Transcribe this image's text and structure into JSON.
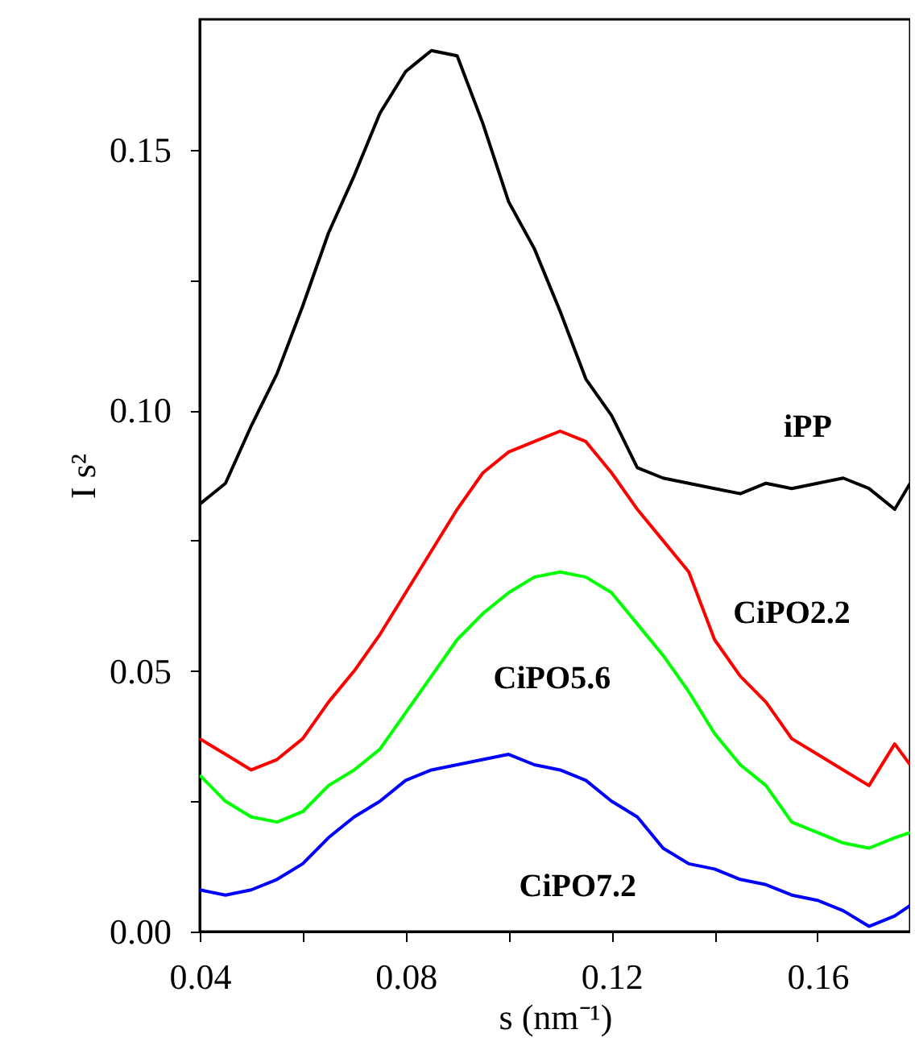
{
  "chart_data": {
    "type": "line",
    "xlabel": "s (nm⁻¹)",
    "ylabel": "I s²",
    "x": [
      0.04,
      0.045,
      0.05,
      0.055,
      0.06,
      0.065,
      0.07,
      0.075,
      0.08,
      0.085,
      0.09,
      0.095,
      0.1,
      0.105,
      0.11,
      0.115,
      0.12,
      0.125,
      0.13,
      0.135,
      0.14,
      0.145,
      0.15,
      0.155,
      0.16,
      0.165,
      0.17,
      0.175,
      0.178
    ],
    "series": [
      {
        "name": "iPP",
        "color": "#000000",
        "values": [
          0.082,
          0.086,
          0.097,
          0.107,
          0.12,
          0.134,
          0.145,
          0.157,
          0.165,
          0.169,
          0.168,
          0.155,
          0.14,
          0.131,
          0.119,
          0.106,
          0.099,
          0.089,
          0.087,
          0.086,
          0.085,
          0.084,
          0.086,
          0.085,
          0.086,
          0.087,
          0.085,
          0.081,
          0.086
        ]
      },
      {
        "name": "CiPO2.2",
        "color": "#ff0000",
        "values": [
          0.037,
          0.034,
          0.031,
          0.033,
          0.037,
          0.044,
          0.05,
          0.057,
          0.065,
          0.073,
          0.081,
          0.088,
          0.092,
          0.094,
          0.096,
          0.094,
          0.088,
          0.081,
          0.075,
          0.069,
          0.056,
          0.049,
          0.044,
          0.037,
          0.034,
          0.031,
          0.028,
          0.036,
          0.032
        ]
      },
      {
        "name": "CiPO5.6",
        "color": "#00ff00",
        "values": [
          0.03,
          0.025,
          0.022,
          0.021,
          0.023,
          0.028,
          0.031,
          0.035,
          0.042,
          0.049,
          0.056,
          0.061,
          0.065,
          0.068,
          0.069,
          0.068,
          0.065,
          0.059,
          0.053,
          0.046,
          0.038,
          0.032,
          0.028,
          0.021,
          0.019,
          0.017,
          0.016,
          0.018,
          0.019
        ]
      },
      {
        "name": "CiPO7.2",
        "color": "#0000ff",
        "values": [
          0.008,
          0.007,
          0.008,
          0.01,
          0.013,
          0.018,
          0.022,
          0.025,
          0.029,
          0.031,
          0.032,
          0.033,
          0.034,
          0.032,
          0.031,
          0.029,
          0.025,
          0.022,
          0.016,
          0.013,
          0.012,
          0.01,
          0.009,
          0.007,
          0.006,
          0.004,
          0.001,
          0.003,
          0.005
        ]
      }
    ],
    "xlim": [
      0.04,
      0.178
    ],
    "ylim": [
      0,
      0.175
    ],
    "xticks": [
      0.04,
      {
        "value": 0.06,
        "label": null
      },
      0.08,
      {
        "value": 0.1,
        "label": null
      },
      0.12,
      {
        "value": 0.14,
        "label": null
      },
      0.16
    ],
    "yticks": [
      {
        "value": 0,
        "label": "0.00"
      },
      {
        "value": 0.025,
        "label": null
      },
      {
        "value": 0.05,
        "label": "0.05"
      },
      {
        "value": 0.075,
        "label": null
      },
      {
        "value": 0.1,
        "label": "0.10"
      },
      {
        "value": 0.125,
        "label": null
      },
      {
        "value": 0.15,
        "label": "0.15"
      }
    ],
    "grid": false,
    "marker": "none",
    "line_style": "solid"
  }
}
